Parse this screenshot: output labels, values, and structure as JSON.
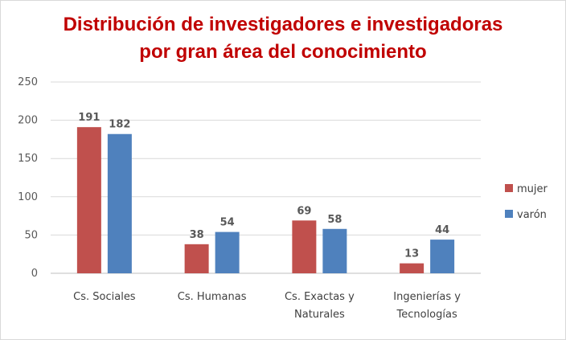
{
  "chart_data": {
    "type": "bar",
    "title_lines": [
      "Distribución de investigadores e investigadoras",
      "por gran área del conocimiento"
    ],
    "categories": [
      [
        "Cs. Sociales"
      ],
      [
        "Cs. Humanas"
      ],
      [
        "Cs. Exactas y",
        "Naturales"
      ],
      [
        "Ingenierías y",
        "Tecnologías"
      ]
    ],
    "series": [
      {
        "name": "mujer",
        "color": "#c0504d",
        "values": [
          191,
          38,
          69,
          13
        ]
      },
      {
        "name": "varón",
        "color": "#4f81bd",
        "values": [
          182,
          54,
          58,
          44
        ]
      }
    ],
    "ylim": [
      0,
      250
    ],
    "yticks": [
      0,
      50,
      100,
      150,
      200,
      250
    ],
    "grid": true,
    "legend": "right",
    "xlabel": "",
    "ylabel": ""
  }
}
